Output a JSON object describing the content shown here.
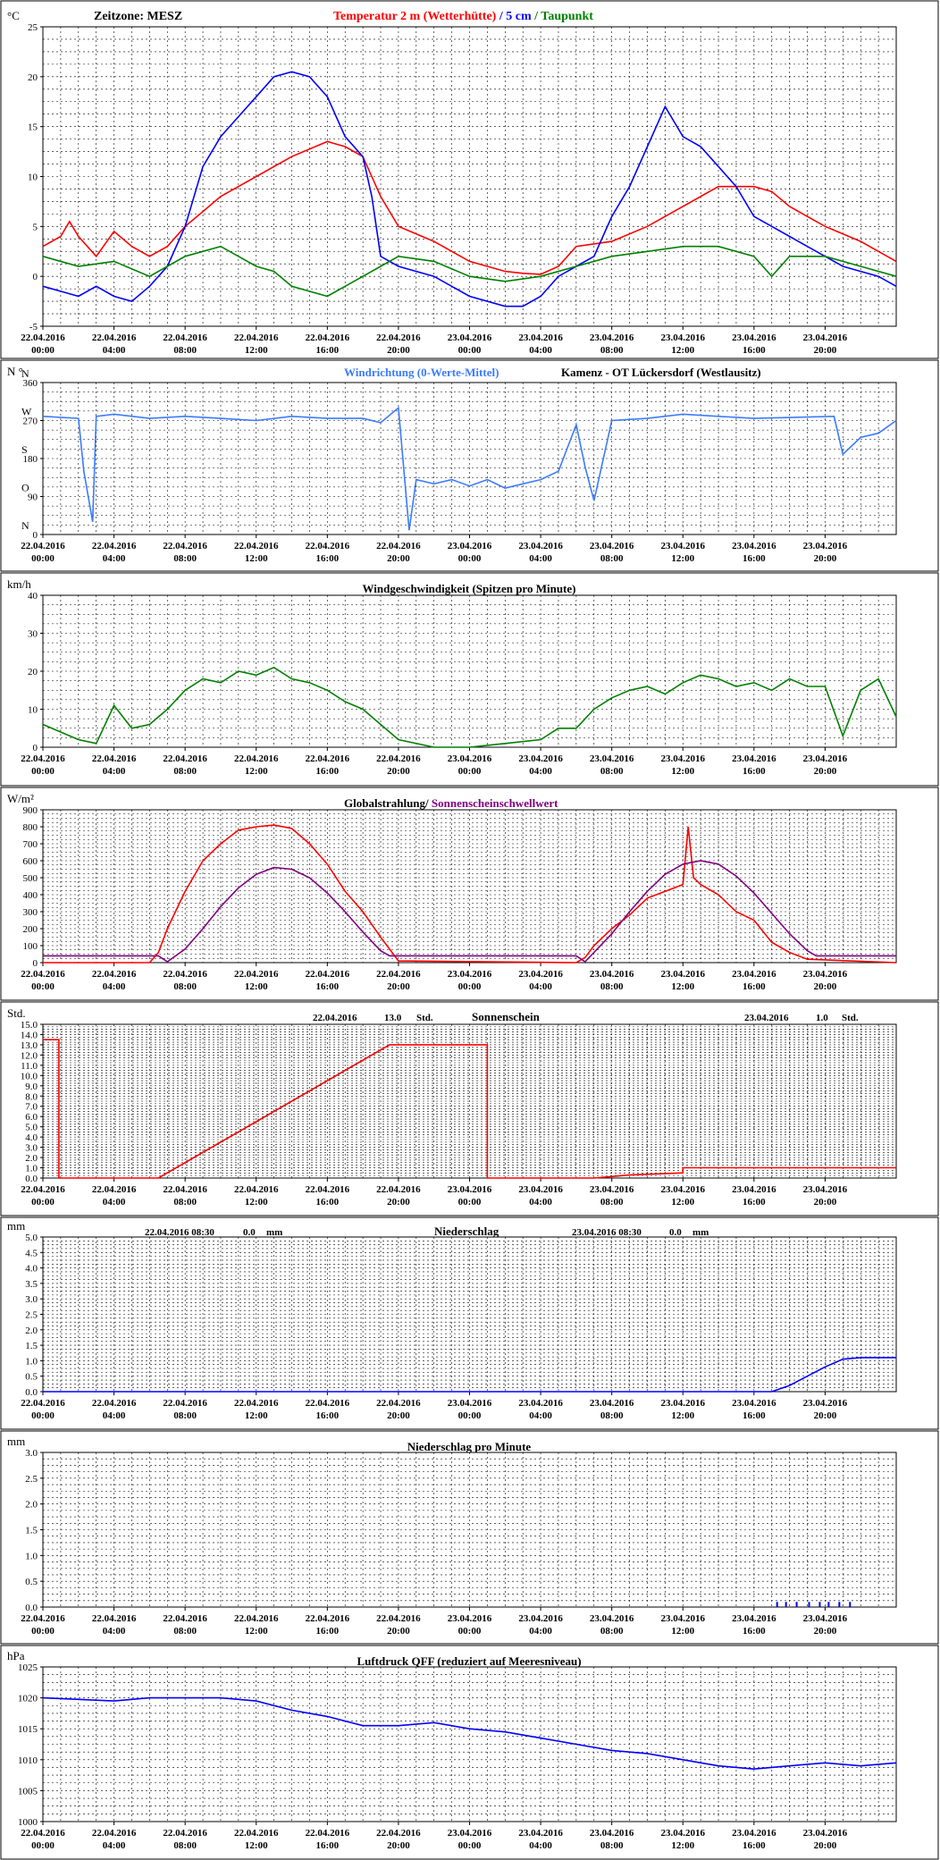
{
  "x_ticks": [
    {
      "date": "22.04.2016",
      "time": "00:00"
    },
    {
      "date": "22.04.2016",
      "time": "04:00"
    },
    {
      "date": "22.04.2016",
      "time": "08:00"
    },
    {
      "date": "22.04.2016",
      "time": "12:00"
    },
    {
      "date": "22.04.2016",
      "time": "16:00"
    },
    {
      "date": "22.04.2016",
      "time": "20:00"
    },
    {
      "date": "23.04.2016",
      "time": "00:00"
    },
    {
      "date": "23.04.2016",
      "time": "04:00"
    },
    {
      "date": "23.04.2016",
      "time": "08:00"
    },
    {
      "date": "23.04.2016",
      "time": "12:00"
    },
    {
      "date": "23.04.2016",
      "time": "16:00"
    },
    {
      "date": "23.04.2016",
      "time": "20:00"
    }
  ],
  "colors": {
    "red": "#ff0000",
    "blue": "#0000ff",
    "lightblue": "#3a7bff",
    "green": "#008000",
    "black": "#000000",
    "purple": "#800080",
    "grid": "#000000"
  },
  "panels": {
    "temp": {
      "unit": "°C",
      "zone_label": "Zeitzone: MESZ",
      "title_parts": [
        {
          "text": "Temperatur 2 m (Wetterhütte)",
          "color": "#ff0000"
        },
        {
          "text": "  /  ",
          "color": "#0000ff"
        },
        {
          "text": "5 cm",
          "color": "#0000ff"
        },
        {
          "text": " / ",
          "color": "#008000"
        },
        {
          "text": "Taupunkt",
          "color": "#008000"
        }
      ],
      "y_ticks": [
        "25",
        "20",
        "15",
        "10",
        "5",
        "0",
        "-5"
      ]
    },
    "winddir": {
      "unit": "N °",
      "title_left": "Windrichtung (0-Werte-Mittel)",
      "title_right": "Kamenz - OT Lückersdorf (Westlausitz)",
      "y_ticks": [
        "360",
        "270",
        "180",
        "90",
        "0"
      ],
      "compass": [
        "N",
        "W",
        "S",
        "O",
        "N"
      ]
    },
    "windspeed": {
      "unit": "km/h",
      "title": "Windgeschwindigkeit (Spitzen pro Minute)",
      "y_ticks": [
        "40",
        "30",
        "20",
        "10",
        "0"
      ]
    },
    "radiation": {
      "unit": "W/m²",
      "title_a": "Globalstrahlung/",
      "title_b": " Sonnenscheinschwellwert",
      "y_ticks": [
        "900",
        "800",
        "700",
        "600",
        "500",
        "400",
        "300",
        "200",
        "100",
        "0"
      ]
    },
    "sunshine": {
      "unit": "Std.",
      "title": "Sonnenschein",
      "day1": {
        "date": "22.04.2016",
        "value": "13.0",
        "unit": "Std."
      },
      "day2": {
        "date": "23.04.2016",
        "value": "1.0",
        "unit": "Std."
      },
      "y_ticks": [
        "15.0",
        "14.0",
        "13.0",
        "12.0",
        "11.0",
        "10.0",
        "9.0",
        "8.0",
        "7.0",
        "6.0",
        "5.0",
        "4.0",
        "3.0",
        "2.0",
        "1.0",
        "0.0"
      ]
    },
    "precip": {
      "unit": "mm",
      "title": "Niederschlag",
      "day1": {
        "date": "22.04.2016 08:30",
        "value": "0.0",
        "unit": "mm"
      },
      "day2": {
        "date": "23.04.2016 08:30",
        "value": "0.0",
        "unit": "mm"
      },
      "y_ticks": [
        "5.0",
        "4.5",
        "4.0",
        "3.5",
        "3.0",
        "2.5",
        "2.0",
        "1.5",
        "1.0",
        "0.5",
        "0.0"
      ]
    },
    "precipmin": {
      "unit": "mm",
      "title": "Niederschlag pro Minute",
      "y_ticks": [
        "3.0",
        "2.5",
        "2.0",
        "1.5",
        "1.0",
        "0.5",
        "0.0"
      ]
    },
    "pressure": {
      "unit": "hPa",
      "title": "Luftdruck QFF (reduziert auf Meeresniveau)",
      "y_ticks": [
        "1025",
        "1020",
        "1015",
        "1010",
        "1005",
        "1000"
      ]
    }
  },
  "chart_data": [
    {
      "type": "line",
      "title": "Temperatur 2 m (Wetterhütte) / 5 cm / Taupunkt",
      "ylabel": "°C",
      "ylim": [
        -5,
        25
      ],
      "x_unit": "hours since 22.04.2016 00:00",
      "xlim": [
        0,
        48
      ],
      "series": [
        {
          "name": "Temperatur 2 m (Wetterhütte)",
          "color": "#ff0000",
          "x": [
            0,
            1,
            1.5,
            2,
            3,
            4,
            5,
            6,
            7,
            8,
            9,
            10,
            12,
            14,
            16,
            17,
            18,
            19,
            20,
            22,
            24,
            26,
            27,
            28,
            29,
            30,
            32,
            34,
            36,
            38,
            40,
            41,
            42,
            44,
            46,
            47,
            48
          ],
          "y": [
            3,
            4,
            5.5,
            4,
            2,
            4.5,
            3,
            2,
            3,
            5,
            6.5,
            8,
            10,
            12,
            13.5,
            13,
            12,
            8,
            5,
            3.5,
            1.5,
            0.5,
            0.3,
            0.2,
            1,
            3,
            3.5,
            5,
            7,
            9,
            9,
            8.5,
            7,
            5,
            3.5,
            2.5,
            1.5
          ]
        },
        {
          "name": "5 cm",
          "color": "#0000ff",
          "x": [
            0,
            1,
            2,
            3,
            4,
            5,
            6,
            7,
            8,
            9,
            10,
            11,
            12,
            13,
            14,
            15,
            16,
            17,
            18,
            18.5,
            19,
            20,
            22,
            24,
            26,
            27,
            28,
            29,
            30,
            31,
            32,
            33,
            34,
            35,
            36,
            37,
            38,
            39,
            40,
            41,
            42,
            43,
            44,
            45,
            46,
            47,
            48
          ],
          "y": [
            -1,
            -1.5,
            -2,
            -1,
            -2,
            -2.5,
            -1,
            1,
            5,
            11,
            14,
            16,
            18,
            20,
            20.5,
            20,
            18,
            14,
            12,
            8,
            2,
            1,
            0,
            -2,
            -3,
            -3,
            -2,
            0,
            1,
            2,
            6,
            9,
            13,
            17,
            14,
            13,
            11,
            9,
            6,
            5,
            4,
            3,
            2,
            1,
            0.5,
            0,
            -1
          ]
        },
        {
          "name": "Taupunkt",
          "color": "#008000",
          "x": [
            0,
            2,
            4,
            6,
            8,
            10,
            12,
            13,
            14,
            16,
            18,
            19,
            20,
            22,
            24,
            26,
            28,
            30,
            32,
            34,
            36,
            38,
            40,
            41,
            42,
            44,
            46,
            48
          ],
          "y": [
            2,
            1,
            1.5,
            0,
            2,
            3,
            1,
            0.5,
            -1,
            -2,
            0,
            1,
            2,
            1.5,
            0,
            -0.5,
            0,
            1,
            2,
            2.5,
            3,
            3,
            2,
            0,
            2,
            2,
            1,
            0
          ]
        }
      ]
    },
    {
      "type": "line",
      "title": "Windrichtung (0-Werte-Mittel)",
      "ylabel": "N °",
      "ylim": [
        0,
        360
      ],
      "x_unit": "hours since 22.04.2016 00:00",
      "xlim": [
        0,
        48
      ],
      "series": [
        {
          "name": "Windrichtung (0-Werte-Mittel)",
          "color": "#3a7bff",
          "x": [
            0,
            2,
            2.3,
            2.8,
            3,
            4,
            6,
            8,
            10,
            12,
            14,
            16,
            18,
            19,
            20,
            20.6,
            21,
            22,
            23,
            24,
            25,
            26,
            27,
            28,
            29,
            30,
            30.5,
            31,
            32,
            34,
            36,
            38,
            40,
            44.5,
            45,
            46,
            47,
            48
          ],
          "y": [
            280,
            275,
            150,
            30,
            280,
            285,
            275,
            280,
            275,
            270,
            280,
            275,
            275,
            265,
            300,
            10,
            130,
            120,
            130,
            115,
            130,
            110,
            120,
            130,
            150,
            260,
            160,
            80,
            270,
            275,
            285,
            280,
            275,
            280,
            190,
            230,
            240,
            270
          ]
        }
      ]
    },
    {
      "type": "line",
      "title": "Windgeschwindigkeit (Spitzen pro Minute)",
      "ylabel": "km/h",
      "ylim": [
        0,
        40
      ],
      "x_unit": "hours since 22.04.2016 00:00",
      "xlim": [
        0,
        48
      ],
      "series": [
        {
          "name": "Windgeschwindigkeit (Spitzen pro Minute)",
          "color": "#008000",
          "x": [
            0,
            1,
            2,
            3,
            4,
            5,
            6,
            7,
            8,
            9,
            10,
            11,
            12,
            13,
            14,
            15,
            16,
            17,
            18,
            19,
            20,
            22,
            24,
            26,
            28,
            29,
            30,
            31,
            32,
            33,
            34,
            35,
            36,
            37,
            38,
            39,
            40,
            41,
            42,
            43,
            44,
            45,
            46,
            47,
            48
          ],
          "y": [
            6,
            4,
            2,
            1,
            11,
            5,
            6,
            10,
            15,
            18,
            17,
            20,
            19,
            21,
            18,
            17,
            15,
            12,
            10,
            6,
            2,
            0,
            0,
            1,
            2,
            5,
            5,
            10,
            13,
            15,
            16,
            14,
            17,
            19,
            18,
            16,
            17,
            15,
            18,
            16,
            16,
            3,
            15,
            18,
            8
          ]
        }
      ]
    },
    {
      "type": "line",
      "title": "Globalstrahlung/ Sonnenscheinschwellwert",
      "ylabel": "W/m²",
      "ylim": [
        0,
        900
      ],
      "x_unit": "hours since 22.04.2016 00:00",
      "xlim": [
        0,
        48
      ],
      "series": [
        {
          "name": "Globalstrahlung",
          "color": "#ff0000",
          "x": [
            0,
            6,
            6.5,
            7,
            8,
            9,
            10,
            11,
            12,
            13,
            14,
            15,
            16,
            17,
            18,
            19,
            20,
            30,
            30.5,
            31,
            32,
            33,
            34,
            35,
            36,
            36.3,
            36.6,
            37,
            38,
            39,
            40,
            41,
            42,
            43,
            48
          ],
          "y": [
            0,
            0,
            60,
            200,
            420,
            600,
            700,
            780,
            800,
            810,
            790,
            700,
            580,
            420,
            300,
            150,
            10,
            0,
            30,
            100,
            200,
            280,
            380,
            420,
            460,
            800,
            500,
            460,
            400,
            300,
            250,
            120,
            60,
            20,
            0
          ]
        },
        {
          "name": "Sonnenscheinschwellwert",
          "color": "#800080",
          "x": [
            0,
            6.5,
            7,
            8,
            9,
            10,
            11,
            12,
            13,
            14,
            15,
            16,
            17,
            18,
            19,
            19.5,
            30,
            30.5,
            31,
            32,
            33,
            34,
            35,
            36,
            37,
            38,
            39,
            40,
            41,
            42,
            43,
            43.5,
            48
          ],
          "y": [
            40,
            40,
            5,
            80,
            200,
            330,
            440,
            520,
            560,
            550,
            500,
            410,
            300,
            180,
            70,
            40,
            40,
            5,
            60,
            170,
            300,
            420,
            520,
            580,
            600,
            580,
            510,
            410,
            290,
            170,
            70,
            40,
            40
          ]
        }
      ]
    },
    {
      "type": "line",
      "title": "Sonnenschein",
      "ylabel": "Std.",
      "ylim": [
        0,
        15
      ],
      "x_unit": "hours since 22.04.2016 00:00",
      "xlim": [
        0,
        48
      ],
      "series": [
        {
          "name": "Sonnenschein",
          "color": "#ff0000",
          "x": [
            0,
            0.9,
            0.9,
            6.5,
            19.5,
            25,
            25,
            31,
            33,
            36,
            36,
            48
          ],
          "y": [
            13.5,
            13.5,
            0,
            0,
            13,
            13,
            0,
            0,
            0.3,
            0.5,
            1,
            1
          ]
        }
      ]
    },
    {
      "type": "line",
      "title": "Niederschlag",
      "ylabel": "mm",
      "ylim": [
        0,
        5
      ],
      "x_unit": "hours since 22.04.2016 00:00",
      "xlim": [
        0,
        48
      ],
      "series": [
        {
          "name": "Niederschlag",
          "color": "#0000ff",
          "x": [
            0,
            41,
            42,
            43,
            44,
            45,
            46,
            48
          ],
          "y": [
            0,
            0,
            0.2,
            0.5,
            0.8,
            1.05,
            1.1,
            1.1
          ]
        }
      ]
    },
    {
      "type": "bar",
      "title": "Niederschlag pro Minute",
      "ylabel": "mm",
      "ylim": [
        0,
        3
      ],
      "x_unit": "hours since 22.04.2016 00:00",
      "xlim": [
        0,
        48
      ],
      "series": [
        {
          "name": "Niederschlag pro Minute",
          "color": "#0000ff",
          "x": [
            41.3,
            41.8,
            42.4,
            43.1,
            43.7,
            44.2,
            44.8,
            45.4
          ],
          "y": [
            0.1,
            0.1,
            0.1,
            0.1,
            0.1,
            0.1,
            0.1,
            0.1
          ]
        }
      ]
    },
    {
      "type": "line",
      "title": "Luftdruck QFF (reduziert auf Meeresniveau)",
      "ylabel": "hPa",
      "ylim": [
        1000,
        1025
      ],
      "x_unit": "hours since 22.04.2016 00:00",
      "xlim": [
        0,
        48
      ],
      "series": [
        {
          "name": "Luftdruck QFF",
          "color": "#0000ff",
          "x": [
            0,
            4,
            6,
            8,
            10,
            12,
            14,
            16,
            18,
            20,
            22,
            24,
            26,
            28,
            30,
            32,
            34,
            36,
            38,
            40,
            42,
            44,
            46,
            48
          ],
          "y": [
            1020,
            1019.5,
            1020,
            1020,
            1020,
            1019.5,
            1018,
            1017,
            1015.5,
            1015.5,
            1016,
            1015,
            1014.5,
            1013.5,
            1012.5,
            1011.5,
            1011,
            1010,
            1009,
            1008.5,
            1009,
            1009.5,
            1009,
            1009.5
          ]
        }
      ]
    }
  ]
}
